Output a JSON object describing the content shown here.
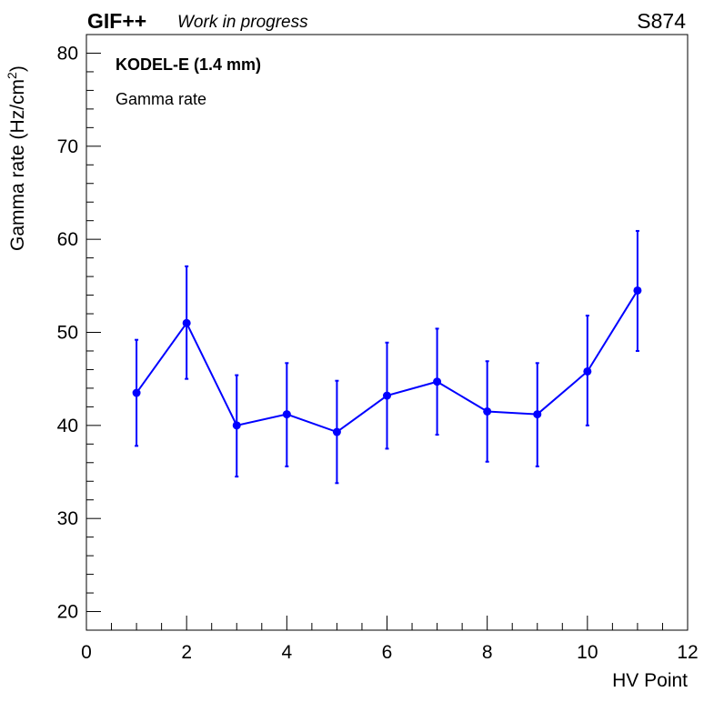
{
  "header": {
    "experiment": "GIF++",
    "status": "Work in progress",
    "run": "S874"
  },
  "legend": {
    "title": "KODEL-E (1.4 mm)",
    "entry": "Gamma rate"
  },
  "chart_data": {
    "type": "line",
    "xlabel": "HV Point",
    "ylabel_main": "Gamma rate (Hz/cm",
    "ylabel_sup": "2",
    "ylabel_close": ")",
    "xlim": [
      0,
      12
    ],
    "ylim": [
      18,
      82
    ],
    "x_ticks": [
      "0",
      "2",
      "4",
      "6",
      "8",
      "10",
      "12"
    ],
    "y_ticks": [
      "20",
      "30",
      "40",
      "50",
      "60",
      "70",
      "80"
    ],
    "grid": false,
    "series": [
      {
        "color": "#0000ff",
        "x": [
          1,
          2,
          3,
          4,
          5,
          6,
          7,
          8,
          9,
          10,
          11
        ],
        "y": [
          43.5,
          51.0,
          40.0,
          41.2,
          39.3,
          43.2,
          44.7,
          41.5,
          41.2,
          45.8,
          54.5
        ],
        "y_err_low": [
          37.8,
          45.0,
          34.5,
          35.6,
          33.8,
          37.5,
          39.0,
          36.1,
          35.6,
          40.0,
          48.0
        ],
        "y_err_high": [
          49.2,
          57.1,
          45.4,
          46.7,
          44.8,
          48.9,
          50.4,
          46.9,
          46.7,
          51.8,
          60.9
        ]
      }
    ]
  }
}
